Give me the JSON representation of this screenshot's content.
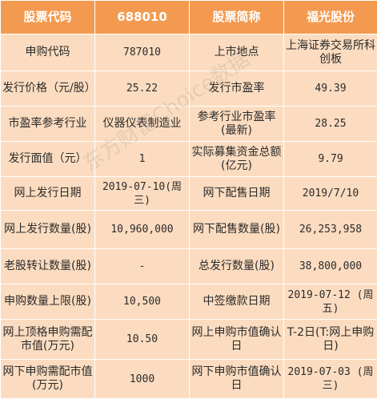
{
  "header": {
    "col1": "股票代码",
    "col2": "688010",
    "col3": "股票简称",
    "col4": "福光股份"
  },
  "rows": [
    {
      "l1": "申购代码",
      "v1": "787010",
      "l2": "上市地点",
      "v2": "上海证券交易所科创板"
    },
    {
      "l1": "发行价格（元/股）",
      "v1": "25.22",
      "l2": "发行市盈率",
      "v2": "49.39"
    },
    {
      "l1": "市盈率参考行业",
      "v1": "仪器仪表制造业",
      "l2": "参考行业市盈率(最新)",
      "v2": "28.25"
    },
    {
      "l1": "发行面值（元）",
      "v1": "1",
      "l2": "实际募集资金总额(亿元)",
      "v2": "9.79"
    },
    {
      "l1": "网上发行日期",
      "v1": "2019-07-10(周三)",
      "l2": "网下配售日期",
      "v2": "2019/7/10"
    },
    {
      "l1": "网上发行数量(股)",
      "v1": "10,960,000",
      "l2": "网下配售数量(股)",
      "v2": "26,253,958"
    },
    {
      "l1": "老股转让数量(股)",
      "v1": "-",
      "l2": "总发行数量(股)",
      "v2": "38,800,000"
    },
    {
      "l1": "申购数量上限(股)",
      "v1": "10,500",
      "l2": "中签缴款日期",
      "v2": "2019-07-12 (周五)"
    },
    {
      "l1": "网上顶格申购需配市值(万元)",
      "v1": "10.50",
      "l2": "网上申购市值确认日",
      "v2": "T-2日(T:网上申购日)"
    },
    {
      "l1": "网下申购需配市值(万元)",
      "v1": "1000",
      "l2": "网下申购市值确认日",
      "v2": "2019-07-03 (周三)"
    }
  ],
  "watermark": "东方财富Choice数据"
}
